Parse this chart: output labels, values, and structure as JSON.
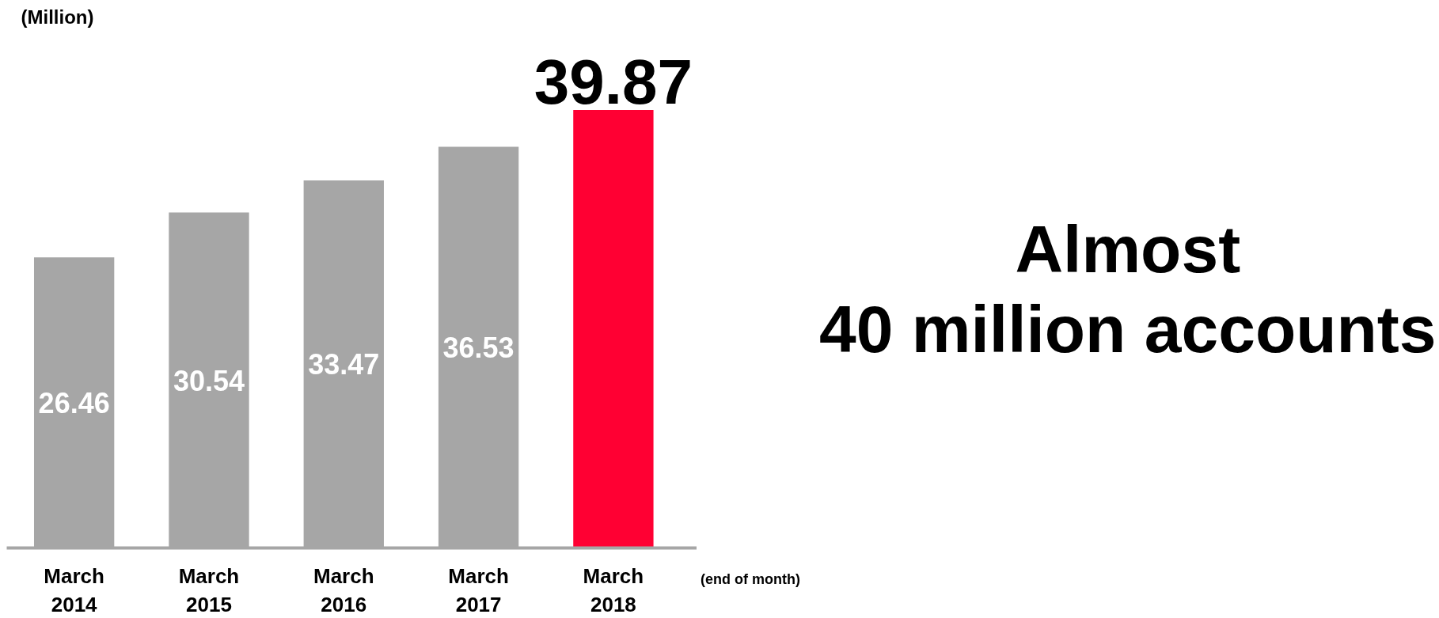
{
  "chart_data": {
    "type": "bar",
    "ylabel": "(Million)",
    "xlabel": "(end of month)",
    "categories": [
      "March\n2014",
      "March\n2015",
      "March\n2016",
      "March\n2017",
      "March\n2018"
    ],
    "values": [
      26.46,
      30.54,
      33.47,
      36.53,
      39.87
    ],
    "colors": [
      "#a6a6a6",
      "#a6a6a6",
      "#a6a6a6",
      "#a6a6a6",
      "#ff0033"
    ],
    "data_labels": true,
    "annotations": [
      "Almost\n40 million accounts"
    ]
  }
}
